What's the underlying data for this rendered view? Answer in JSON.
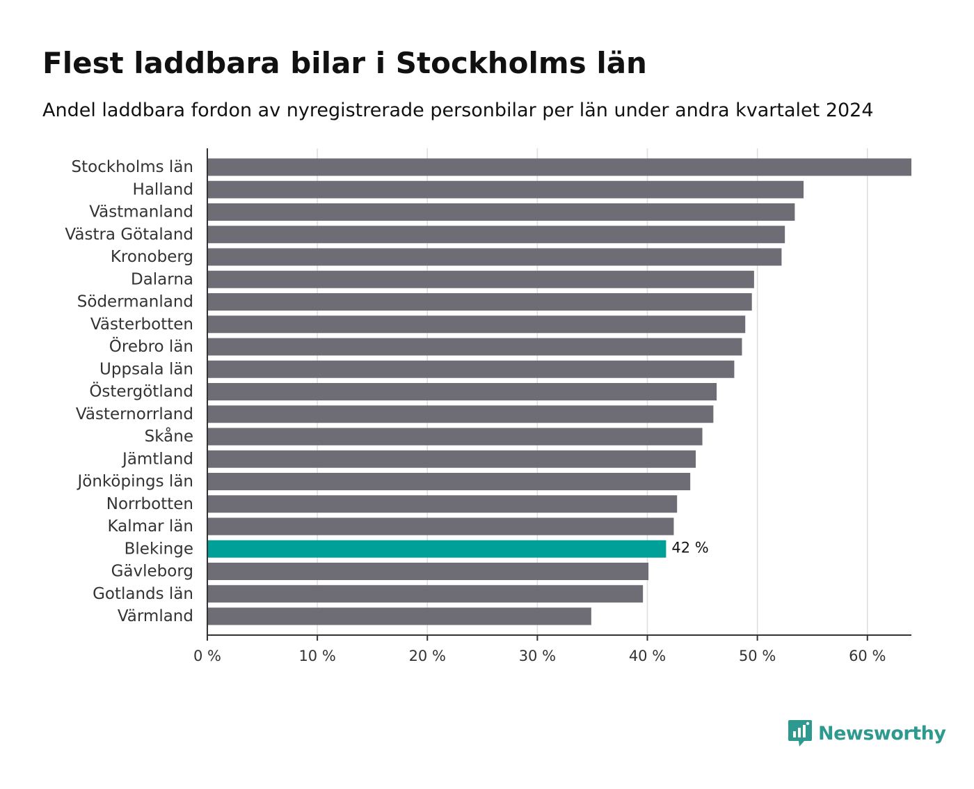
{
  "colors": {
    "bar": "#6e6d75",
    "highlight": "#00a099",
    "grid": "#dddddd",
    "axis": "#333333",
    "logo": "#2e9a8f"
  },
  "brand": {
    "name": "Newsworthy",
    "icon": "chart-bubble-icon"
  },
  "chart_data": {
    "type": "bar",
    "orientation": "horizontal",
    "title": "Flest laddbara bilar i Stockholms län",
    "subtitle": "Andel laddbara fordon av nyregistrerade personbilar per län under andra kvartalet 2024",
    "categories": [
      "Stockholms län",
      "Halland",
      "Västmanland",
      "Västra Götaland",
      "Kronoberg",
      "Dalarna",
      "Södermanland",
      "Västerbotten",
      "Örebro län",
      "Uppsala län",
      "Östergötland",
      "Västernorrland",
      "Skåne",
      "Jämtland",
      "Jönköpings län",
      "Norrbotten",
      "Kalmar län",
      "Blekinge",
      "Gävleborg",
      "Gotlands län",
      "Värmland"
    ],
    "values": [
      64.0,
      54.2,
      53.4,
      52.5,
      52.2,
      49.7,
      49.5,
      48.9,
      48.6,
      47.9,
      46.3,
      46.0,
      45.0,
      44.4,
      43.9,
      42.7,
      42.4,
      41.7,
      40.1,
      39.6,
      34.9
    ],
    "highlight": "Blekinge",
    "highlight_label": "42 %",
    "xlim": [
      0,
      64
    ],
    "xticks": [
      0,
      10,
      20,
      30,
      40,
      50,
      60
    ],
    "xtick_labels": [
      "0 %",
      "10 %",
      "20 %",
      "30 %",
      "40 %",
      "50 %",
      "60 %"
    ],
    "xlabel": "",
    "ylabel": "",
    "grid": true
  }
}
